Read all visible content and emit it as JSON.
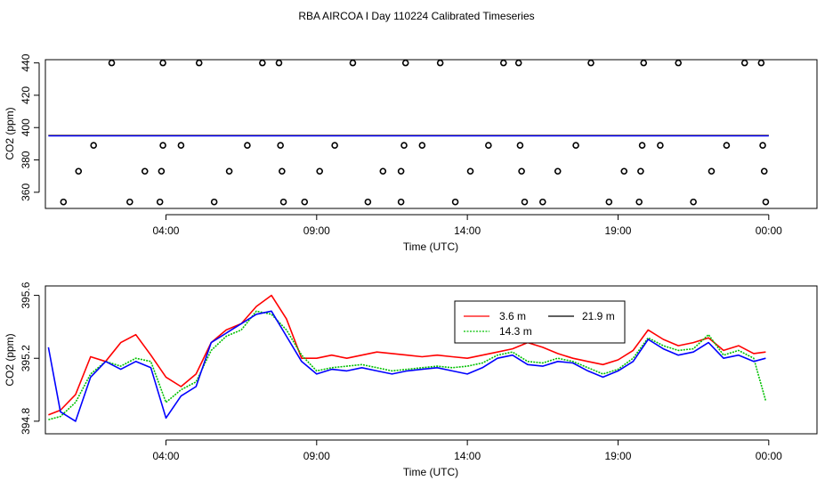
{
  "title": "RBA AIRCOA I  Day 110224  Calibrated Timeseries",
  "colors": {
    "red": "#ff0000",
    "green": "#00c000",
    "blue": "#0000ff",
    "black": "#000000"
  },
  "chart_data": [
    {
      "type": "scatter+line",
      "xlabel": "Time (UTC)",
      "ylabel": "CO2 (ppm)",
      "xlim": [
        0,
        25.6
      ],
      "ylim": [
        350,
        442
      ],
      "xticks": [
        {
          "value": 4,
          "label": "04:00"
        },
        {
          "value": 9,
          "label": "09:00"
        },
        {
          "value": 14,
          "label": "14:00"
        },
        {
          "value": 19,
          "label": "19:00"
        },
        {
          "value": 24,
          "label": "00:00"
        }
      ],
      "yticks": [
        360,
        380,
        400,
        420,
        440
      ],
      "baseline": {
        "value": 395.2,
        "x_range": [
          0.1,
          24.0
        ]
      },
      "points": [
        {
          "x": 0.6,
          "y": 354
        },
        {
          "x": 1.1,
          "y": 373
        },
        {
          "x": 1.6,
          "y": 389
        },
        {
          "x": 2.2,
          "y": 440
        },
        {
          "x": 2.8,
          "y": 354
        },
        {
          "x": 3.3,
          "y": 373
        },
        {
          "x": 3.8,
          "y": 354
        },
        {
          "x": 3.85,
          "y": 373
        },
        {
          "x": 3.9,
          "y": 389
        },
        {
          "x": 3.9,
          "y": 440
        },
        {
          "x": 4.5,
          "y": 389
        },
        {
          "x": 5.1,
          "y": 440
        },
        {
          "x": 5.6,
          "y": 354
        },
        {
          "x": 6.1,
          "y": 373
        },
        {
          "x": 6.7,
          "y": 389
        },
        {
          "x": 7.2,
          "y": 440
        },
        {
          "x": 7.75,
          "y": 440
        },
        {
          "x": 7.8,
          "y": 389
        },
        {
          "x": 7.85,
          "y": 373
        },
        {
          "x": 7.9,
          "y": 354
        },
        {
          "x": 8.6,
          "y": 354
        },
        {
          "x": 9.1,
          "y": 373
        },
        {
          "x": 9.6,
          "y": 389
        },
        {
          "x": 10.2,
          "y": 440
        },
        {
          "x": 10.7,
          "y": 354
        },
        {
          "x": 11.2,
          "y": 373
        },
        {
          "x": 11.8,
          "y": 354
        },
        {
          "x": 11.8,
          "y": 373
        },
        {
          "x": 11.9,
          "y": 389
        },
        {
          "x": 11.95,
          "y": 440
        },
        {
          "x": 12.5,
          "y": 389
        },
        {
          "x": 13.1,
          "y": 440
        },
        {
          "x": 13.6,
          "y": 354
        },
        {
          "x": 14.1,
          "y": 373
        },
        {
          "x": 14.7,
          "y": 389
        },
        {
          "x": 15.2,
          "y": 440
        },
        {
          "x": 15.7,
          "y": 440
        },
        {
          "x": 15.75,
          "y": 389
        },
        {
          "x": 15.8,
          "y": 373
        },
        {
          "x": 15.9,
          "y": 354
        },
        {
          "x": 16.5,
          "y": 354
        },
        {
          "x": 17.0,
          "y": 373
        },
        {
          "x": 17.6,
          "y": 389
        },
        {
          "x": 18.1,
          "y": 440
        },
        {
          "x": 18.7,
          "y": 354
        },
        {
          "x": 19.2,
          "y": 373
        },
        {
          "x": 19.7,
          "y": 354
        },
        {
          "x": 19.75,
          "y": 373
        },
        {
          "x": 19.8,
          "y": 389
        },
        {
          "x": 19.85,
          "y": 440
        },
        {
          "x": 20.4,
          "y": 389
        },
        {
          "x": 21.0,
          "y": 440
        },
        {
          "x": 21.5,
          "y": 354
        },
        {
          "x": 22.1,
          "y": 373
        },
        {
          "x": 22.6,
          "y": 389
        },
        {
          "x": 23.2,
          "y": 440
        },
        {
          "x": 23.75,
          "y": 440
        },
        {
          "x": 23.8,
          "y": 389
        },
        {
          "x": 23.85,
          "y": 373
        },
        {
          "x": 23.9,
          "y": 354
        }
      ]
    },
    {
      "type": "line",
      "xlabel": "Time (UTC)",
      "ylabel": "CO2 (ppm)",
      "xlim": [
        0,
        25.6
      ],
      "ylim": [
        394.72,
        395.66
      ],
      "xticks": [
        {
          "value": 4,
          "label": "04:00"
        },
        {
          "value": 9,
          "label": "09:00"
        },
        {
          "value": 14,
          "label": "14:00"
        },
        {
          "value": 19,
          "label": "19:00"
        },
        {
          "value": 24,
          "label": "00:00"
        }
      ],
      "yticks": [
        {
          "value": 394.8,
          "label": "394.8"
        },
        {
          "value": 395.2,
          "label": "395.2"
        },
        {
          "value": 395.6,
          "label": "395.6"
        }
      ],
      "legend_position": "top-center",
      "series": [
        {
          "name": "3.6 m",
          "color": "#ff0000",
          "x": [
            0.1,
            0.5,
            1.0,
            1.5,
            2.0,
            2.5,
            3.0,
            3.5,
            4.0,
            4.5,
            5.0,
            5.5,
            6.0,
            6.5,
            7.0,
            7.5,
            8.0,
            8.5,
            9.0,
            9.5,
            10.0,
            10.5,
            11.0,
            11.5,
            12.0,
            12.5,
            13.0,
            13.5,
            14.0,
            14.5,
            15.0,
            15.5,
            16.0,
            16.5,
            17.0,
            17.5,
            18.0,
            18.5,
            19.0,
            19.5,
            20.0,
            20.5,
            21.0,
            21.5,
            22.0,
            22.5,
            23.0,
            23.5,
            23.9
          ],
          "y": [
            394.84,
            394.87,
            394.97,
            395.21,
            395.18,
            395.3,
            395.35,
            395.22,
            395.08,
            395.02,
            395.1,
            395.3,
            395.38,
            395.42,
            395.53,
            395.6,
            395.45,
            395.2,
            395.2,
            395.22,
            395.2,
            395.22,
            395.24,
            395.23,
            395.22,
            395.21,
            395.22,
            395.21,
            395.2,
            395.22,
            395.24,
            395.26,
            395.3,
            395.27,
            395.23,
            395.2,
            395.18,
            395.16,
            395.19,
            395.25,
            395.38,
            395.32,
            395.28,
            395.3,
            395.33,
            395.25,
            395.28,
            395.23,
            395.24
          ]
        },
        {
          "name": "14.3 m",
          "color": "#00c000",
          "x": [
            0.1,
            0.5,
            1.0,
            1.5,
            2.0,
            2.5,
            3.0,
            3.5,
            4.0,
            4.5,
            5.0,
            5.5,
            6.0,
            6.5,
            7.0,
            7.5,
            8.0,
            8.5,
            9.0,
            9.5,
            10.0,
            10.5,
            11.0,
            11.5,
            12.0,
            12.5,
            13.0,
            13.5,
            14.0,
            14.5,
            15.0,
            15.5,
            16.0,
            16.5,
            17.0,
            17.5,
            18.0,
            18.5,
            19.0,
            19.5,
            20.0,
            20.5,
            21.0,
            21.5,
            22.0,
            22.5,
            23.0,
            23.5,
            23.9
          ],
          "y": [
            394.81,
            394.83,
            394.92,
            395.1,
            395.18,
            395.15,
            395.2,
            395.18,
            394.92,
            395.0,
            395.05,
            395.25,
            395.34,
            395.38,
            395.5,
            395.48,
            395.38,
            395.22,
            395.12,
            395.14,
            395.15,
            395.16,
            395.14,
            395.12,
            395.13,
            395.14,
            395.15,
            395.14,
            395.15,
            395.17,
            395.22,
            395.24,
            395.18,
            395.17,
            395.2,
            395.18,
            395.14,
            395.1,
            395.13,
            395.2,
            395.33,
            395.28,
            395.25,
            395.26,
            395.35,
            395.22,
            395.25,
            395.2,
            394.93
          ]
        },
        {
          "name": "21.9 m",
          "color": "#0000ff",
          "x": [
            0.1,
            0.5,
            1.0,
            1.5,
            2.0,
            2.5,
            3.0,
            3.5,
            4.0,
            4.5,
            5.0,
            5.5,
            6.0,
            6.5,
            7.0,
            7.5,
            8.0,
            8.5,
            9.0,
            9.5,
            10.0,
            10.5,
            11.0,
            11.5,
            12.0,
            12.5,
            13.0,
            13.5,
            14.0,
            14.5,
            15.0,
            15.5,
            16.0,
            16.5,
            17.0,
            17.5,
            18.0,
            18.5,
            19.0,
            19.5,
            20.0,
            20.5,
            21.0,
            21.5,
            22.0,
            22.5,
            23.0,
            23.5,
            23.9
          ],
          "y": [
            395.27,
            394.86,
            394.8,
            395.08,
            395.18,
            395.13,
            395.18,
            395.14,
            394.82,
            394.96,
            395.02,
            395.3,
            395.36,
            395.42,
            395.48,
            395.5,
            395.34,
            395.18,
            395.1,
            395.13,
            395.12,
            395.14,
            395.12,
            395.1,
            395.12,
            395.13,
            395.14,
            395.12,
            395.1,
            395.14,
            395.2,
            395.22,
            395.16,
            395.15,
            395.18,
            395.17,
            395.12,
            395.08,
            395.12,
            395.18,
            395.32,
            395.26,
            395.22,
            395.24,
            395.3,
            395.2,
            395.22,
            395.18,
            395.2
          ]
        }
      ]
    }
  ]
}
